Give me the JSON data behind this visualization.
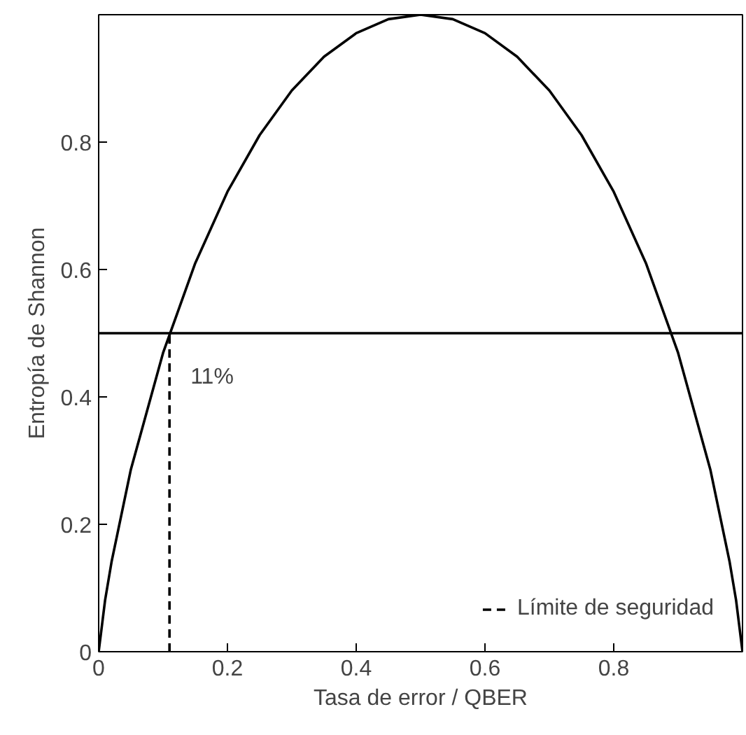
{
  "chart_data": {
    "type": "line",
    "xlabel": "Tasa de error / QBER",
    "ylabel": "Entropía de Shannon",
    "xlim": [
      0,
      1
    ],
    "ylim": [
      0,
      1
    ],
    "xticks": [
      0,
      0.2,
      0.4,
      0.6,
      0.8
    ],
    "yticks": [
      0,
      0.2,
      0.4,
      0.6,
      0.8
    ],
    "series": [
      {
        "color": "#000000",
        "line_style": "solid",
        "x": [
          0,
          0.01,
          0.02,
          0.05,
          0.1,
          0.15,
          0.2,
          0.25,
          0.3,
          0.35,
          0.4,
          0.45,
          0.5,
          0.55,
          0.6,
          0.65,
          0.7,
          0.75,
          0.8,
          0.85,
          0.9,
          0.95,
          0.98,
          0.99,
          1
        ],
        "values": [
          0,
          0.081,
          0.141,
          0.286,
          0.469,
          0.61,
          0.722,
          0.811,
          0.881,
          0.934,
          0.971,
          0.993,
          1,
          0.993,
          0.971,
          0.934,
          0.881,
          0.811,
          0.722,
          0.61,
          0.469,
          0.286,
          0.141,
          0.081,
          0
        ]
      },
      {
        "name": "Límite de seguridad",
        "color": "#000000",
        "line_style": "dashed",
        "x": [
          0.11,
          0.11
        ],
        "values": [
          0,
          0.5
        ]
      }
    ],
    "ref_lines": [
      {
        "axis": "y",
        "value": 0.5,
        "color": "#000000"
      }
    ],
    "annotations": [
      {
        "text": "11%",
        "x": 0.11,
        "y": 0.5
      }
    ],
    "legend": "bottom right",
    "grid": false
  }
}
